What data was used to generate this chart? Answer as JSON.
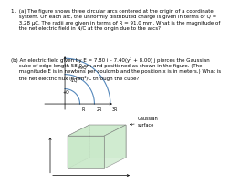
{
  "title_text": "1.  (a) The figure shows three circular arcs centered at the origin of a coordinate\n     system. On each arc, the uniformly distributed charge is given in terms of Q =\n     3.28 μC. The radii are given in terms of R = 91.0 mm. What is the magnitude of\n     the net electric field in N/C at the origin due to the arcs?",
  "part_b_text": "(b) An electric field given by E = 7.80 i – 7.40(y² + 8.00) j pierces the Gaussian\n     cube of edge length 58.0 cm and positioned as shown in the figure. (The\n     magnitude E is in newtons per coulomb and the position x is in meters.) What is\n     the net electric flux in Nm²/C through the cube?",
  "gaussian_label": "Gaussian\nsurface",
  "arc_labels": [
    "+9Q",
    "-1Q",
    "+Q"
  ],
  "arc_radii_labels": [
    "3R",
    "2R",
    "R"
  ],
  "bg_color": "#ffffff",
  "text_color": "#000000",
  "arc_color": "#5588bb",
  "cube_face_color": "#c8e8c8",
  "cube_edge_color": "#777777",
  "text_fontsize": 4.0,
  "arc_lw": 0.8
}
